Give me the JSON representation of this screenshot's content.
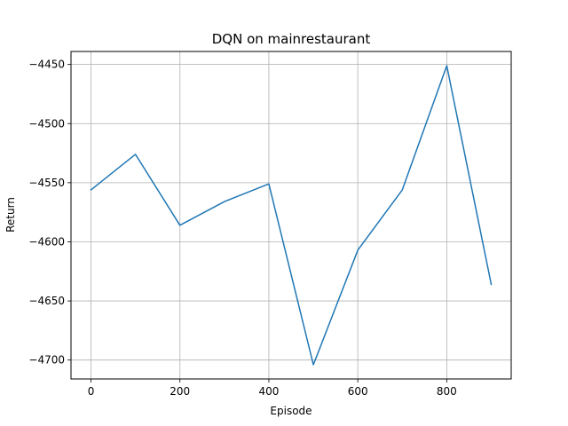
{
  "chart_data": {
    "type": "line",
    "title": "DQN on mainrestaurant",
    "xlabel": "Episode",
    "ylabel": "Return",
    "grid": true,
    "xlim": [
      -45,
      945
    ],
    "ylim": [
      -4716,
      -4439
    ],
    "xticks": [
      0,
      200,
      400,
      600,
      800
    ],
    "yticks": [
      -4700,
      -4650,
      -4600,
      -4550,
      -4500,
      -4450
    ],
    "line_color": "#1f77b4",
    "series": [
      {
        "x": [
          0,
          100,
          200,
          300,
          400,
          500,
          600,
          700,
          800,
          900
        ],
        "y": [
          -4556,
          -4526,
          -4586,
          -4566,
          -4551,
          -4704,
          -4607,
          -4556,
          -4451,
          -4636
        ]
      }
    ]
  }
}
